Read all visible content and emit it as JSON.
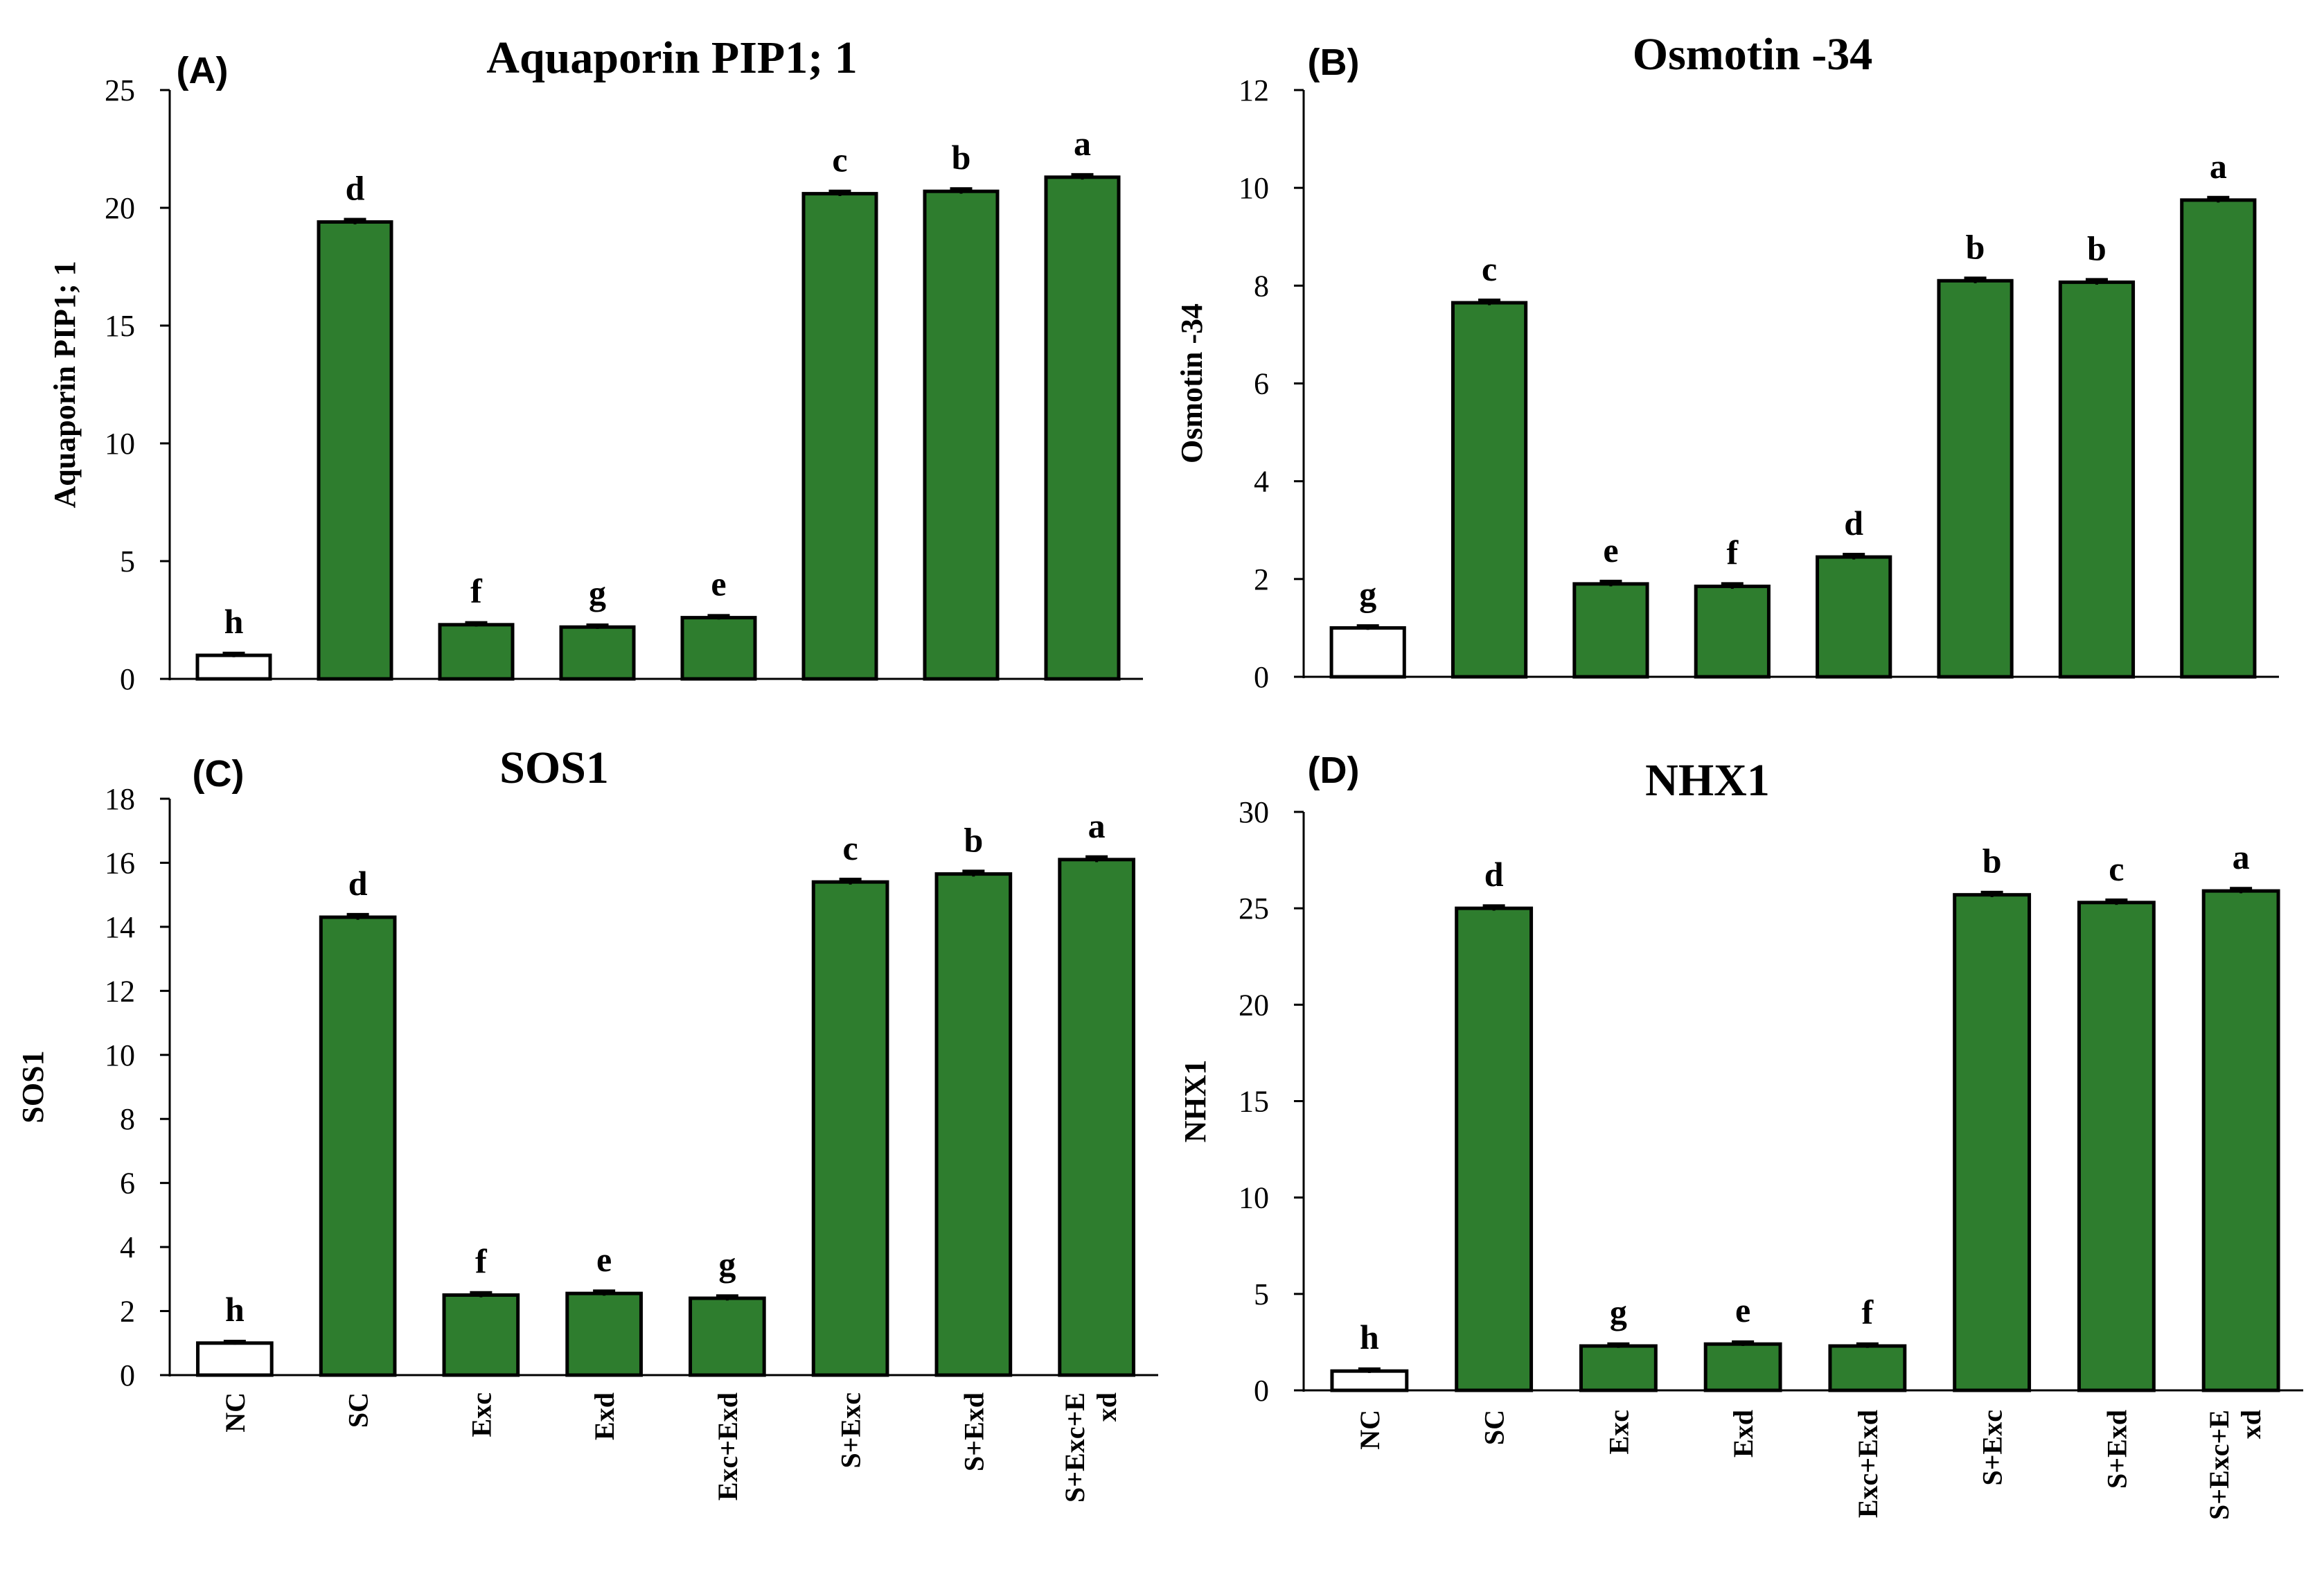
{
  "colors": {
    "bar_fill": "#2e7d2e",
    "control_fill": "#ffffff",
    "outline": "#000000"
  },
  "chart_data": [
    {
      "type": "bar",
      "panel": "(A)",
      "title": "Aquaporin PIP1; 1",
      "ylabel": "Aquaporin PIP1; 1",
      "ylim": [
        0,
        25
      ],
      "yticks": [
        "0",
        "5",
        "10",
        "15",
        "20",
        "25"
      ],
      "categories": [
        "NC",
        "SC",
        "Exc",
        "Exd",
        "Exc+Exd",
        "S+Exc",
        "S+Exd",
        "S+Exc+Exd"
      ],
      "show_categories": false,
      "values": [
        1.0,
        19.4,
        2.3,
        2.2,
        2.6,
        20.6,
        20.7,
        21.3
      ],
      "errors": [
        0.08,
        0.1,
        0.08,
        0.08,
        0.08,
        0.1,
        0.1,
        0.1
      ],
      "labels": [
        "h",
        "d",
        "f",
        "g",
        "e",
        "c",
        "b",
        "a"
      ]
    },
    {
      "type": "bar",
      "panel": "(B)",
      "title": "Osmotin -34",
      "ylabel": "Osmotin -34",
      "ylim": [
        0,
        12
      ],
      "yticks": [
        "0",
        "2",
        "4",
        "6",
        "8",
        "10",
        "12"
      ],
      "categories": [
        "NC",
        "SC",
        "Exc",
        "Exd",
        "Exc+Exd",
        "S+Exc",
        "S+Exd",
        "S+Exc+Exd"
      ],
      "show_categories": false,
      "values": [
        1.0,
        7.65,
        1.9,
        1.85,
        2.45,
        8.1,
        8.07,
        9.75
      ],
      "errors": [
        0.04,
        0.05,
        0.05,
        0.05,
        0.05,
        0.05,
        0.05,
        0.05
      ],
      "labels": [
        "g",
        "c",
        "e",
        "f",
        "d",
        "b",
        "b",
        "a"
      ]
    },
    {
      "type": "bar",
      "panel": "(C)",
      "title": "SOS1",
      "ylabel": "SOS1",
      "ylim": [
        0,
        18
      ],
      "yticks": [
        "0",
        "2",
        "4",
        "6",
        "8",
        "10",
        "12",
        "14",
        "16",
        "18"
      ],
      "categories": [
        "NC",
        "SC",
        "Exc",
        "Exd",
        "Exc+Exd",
        "S+Exc",
        "S+Exd",
        "S+Exc+E\nxd"
      ],
      "show_categories": true,
      "values": [
        1.0,
        14.3,
        2.5,
        2.55,
        2.4,
        15.4,
        15.65,
        16.1
      ],
      "errors": [
        0.05,
        0.08,
        0.07,
        0.07,
        0.07,
        0.08,
        0.08,
        0.08
      ],
      "labels": [
        "h",
        "d",
        "f",
        "e",
        "g",
        "c",
        "b",
        "a"
      ]
    },
    {
      "type": "bar",
      "panel": "(D)",
      "title": "NHX1",
      "ylabel": "NHX1",
      "ylim": [
        0,
        30
      ],
      "yticks": [
        "0",
        "5",
        "10",
        "15",
        "20",
        "25",
        "30"
      ],
      "categories": [
        "NC",
        "SC",
        "Exc",
        "Exd",
        "Exc+Exd",
        "S+Exc",
        "S+Exd",
        "S+Exc+E\nxd"
      ],
      "show_categories": true,
      "values": [
        1.0,
        25.0,
        2.3,
        2.4,
        2.3,
        25.7,
        25.3,
        25.9
      ],
      "errors": [
        0.1,
        0.12,
        0.1,
        0.1,
        0.1,
        0.12,
        0.12,
        0.12
      ],
      "labels": [
        "h",
        "d",
        "g",
        "e",
        "f",
        "b",
        "c",
        "a"
      ]
    }
  ]
}
